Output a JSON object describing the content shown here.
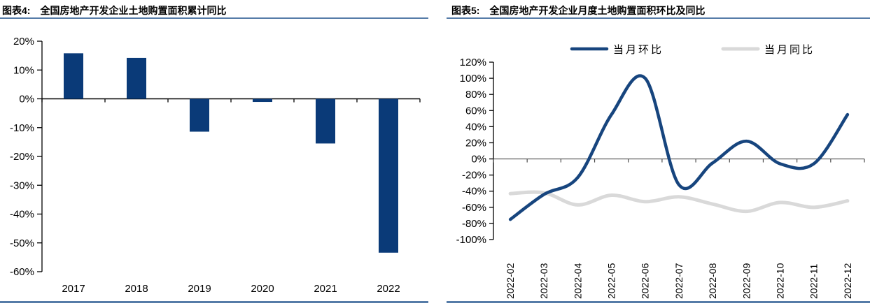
{
  "colors": {
    "navy_bar": "#0A3A78",
    "navy_line": "#17457E",
    "gray_line": "#D9D9D9",
    "rule_blue": "#567CA8",
    "axis_black": "#000000",
    "zero_line_gray": "#4D4D4D"
  },
  "figure4": {
    "title_prefix": "图表4:",
    "title": "全国房地产开发企业土地购置面积累计同比"
  },
  "figure5": {
    "title_prefix": "图表5:",
    "title": "全国房地产开发企业月度土地购置面积环比及同比"
  },
  "chart_data": [
    {
      "type": "bar",
      "title": "全国房地产开发企业土地购置面积累计同比",
      "categories": [
        "2017",
        "2018",
        "2019",
        "2020",
        "2021",
        "2022"
      ],
      "values": [
        15.8,
        14.2,
        -11.4,
        -1.1,
        -15.5,
        -53.4
      ],
      "unit": "%",
      "xlabel": "",
      "ylabel": "",
      "ylim": [
        -60,
        20
      ],
      "ytick_values": [
        20,
        10,
        0,
        -10,
        -20,
        -30,
        -40,
        -50,
        -60
      ],
      "ytick_labels": [
        "20%",
        "10%",
        "0%",
        "-10%",
        "-20%",
        "-30%",
        "-40%",
        "-50%",
        "-60%"
      ],
      "grid": false,
      "bar_color": "#0A3A78"
    },
    {
      "type": "line",
      "title": "全国房地产开发企业月度土地购置面积环比及同比",
      "x": [
        "2022-02",
        "2022-03",
        "2022-04",
        "2022-05",
        "2022-06",
        "2022-07",
        "2022-08",
        "2022-09",
        "2022-10",
        "2022-11",
        "2022-12"
      ],
      "series": [
        {
          "name": "当月环比",
          "color": "#17457E",
          "values": [
            -75,
            -44,
            -23,
            55,
            100,
            -32,
            -5,
            22,
            -6,
            -6,
            55
          ]
        },
        {
          "name": "当月同比",
          "color": "#D9D9D9",
          "values": [
            -43,
            -42,
            -57,
            -45,
            -53,
            -47,
            -56,
            -65,
            -54,
            -60,
            -52
          ]
        }
      ],
      "unit": "%",
      "xlabel": "",
      "ylabel": "",
      "ylim": [
        -100,
        120
      ],
      "ytick_values": [
        120,
        100,
        80,
        60,
        40,
        20,
        0,
        -20,
        -40,
        -60,
        -80,
        -100
      ],
      "ytick_labels": [
        "120%",
        "100%",
        "80%",
        "60%",
        "40%",
        "20%",
        "0%",
        "-20%",
        "-40%",
        "-60%",
        "-80%",
        "-100%"
      ],
      "grid": false,
      "legend_position": "top"
    }
  ]
}
